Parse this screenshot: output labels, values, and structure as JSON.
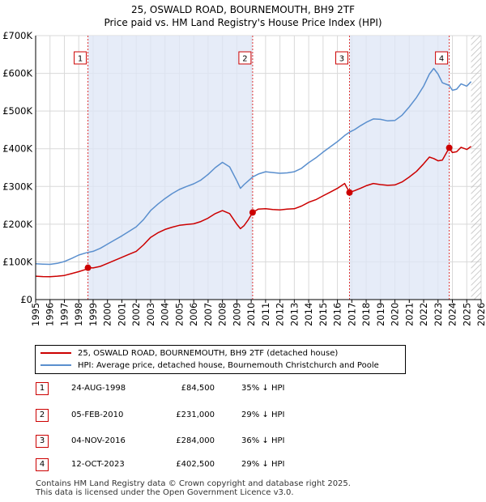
{
  "title_line1": "25, OSWALD ROAD, BOURNEMOUTH, BH9 2TF",
  "title_line2": "Price paid vs. HM Land Registry's House Price Index (HPI)",
  "chart_data": {
    "type": "line",
    "title": "25, OSWALD ROAD, BOURNEMOUTH, BH9 2TF — Price paid vs. HM Land Registry's House Price Index (HPI)",
    "xlim": [
      1995,
      2026
    ],
    "ylim": [
      0,
      700000
    ],
    "x_ticks": [
      1995,
      1996,
      1997,
      1998,
      1999,
      2000,
      2001,
      2002,
      2003,
      2004,
      2005,
      2006,
      2007,
      2008,
      2009,
      2010,
      2011,
      2012,
      2013,
      2014,
      2015,
      2016,
      2017,
      2018,
      2019,
      2020,
      2021,
      2022,
      2023,
      2024,
      2025,
      2026
    ],
    "y_ticks": [
      {
        "value": 0,
        "label": "£0"
      },
      {
        "value": 100000,
        "label": "£100K"
      },
      {
        "value": 200000,
        "label": "£200K"
      },
      {
        "value": 300000,
        "label": "£300K"
      },
      {
        "value": 400000,
        "label": "£400K"
      },
      {
        "value": 500000,
        "label": "£500K"
      },
      {
        "value": 600000,
        "label": "£600K"
      },
      {
        "value": 700000,
        "label": "£700K"
      }
    ],
    "grid": true,
    "series": [
      {
        "name": "25, OSWALD ROAD, BOURNEMOUTH, BH9 2TF (detached house)",
        "color": "#cc0000",
        "points": [
          [
            1995.0,
            62000
          ],
          [
            1995.5,
            61000
          ],
          [
            1996.0,
            60500
          ],
          [
            1996.5,
            62000
          ],
          [
            1997.0,
            64000
          ],
          [
            1997.5,
            69000
          ],
          [
            1998.0,
            74000
          ],
          [
            1998.5,
            80000
          ],
          [
            1998.64,
            84500
          ],
          [
            1999.0,
            84000
          ],
          [
            1999.5,
            88000
          ],
          [
            2000.0,
            96000
          ],
          [
            2000.5,
            104000
          ],
          [
            2001.0,
            112000
          ],
          [
            2001.5,
            120000
          ],
          [
            2002.0,
            128000
          ],
          [
            2002.5,
            145000
          ],
          [
            2003.0,
            165000
          ],
          [
            2003.5,
            177000
          ],
          [
            2004.0,
            186000
          ],
          [
            2004.5,
            192000
          ],
          [
            2005.0,
            197000
          ],
          [
            2005.5,
            199000
          ],
          [
            2006.0,
            201000
          ],
          [
            2006.5,
            207000
          ],
          [
            2007.0,
            216000
          ],
          [
            2007.5,
            228000
          ],
          [
            2008.0,
            236000
          ],
          [
            2008.5,
            228000
          ],
          [
            2009.0,
            200000
          ],
          [
            2009.25,
            188000
          ],
          [
            2009.5,
            196000
          ],
          [
            2009.8,
            212000
          ],
          [
            2010.1,
            231000
          ],
          [
            2010.5,
            240000
          ],
          [
            2011.0,
            241000
          ],
          [
            2011.5,
            239000
          ],
          [
            2012.0,
            238000
          ],
          [
            2012.5,
            240000
          ],
          [
            2013.0,
            241000
          ],
          [
            2013.5,
            248000
          ],
          [
            2014.0,
            258000
          ],
          [
            2014.5,
            265000
          ],
          [
            2015.0,
            275000
          ],
          [
            2015.5,
            285000
          ],
          [
            2016.0,
            295000
          ],
          [
            2016.5,
            308000
          ],
          [
            2016.84,
            284000
          ],
          [
            2017.2,
            289000
          ],
          [
            2017.6,
            295000
          ],
          [
            2018.0,
            302000
          ],
          [
            2018.5,
            308000
          ],
          [
            2019.0,
            305000
          ],
          [
            2019.5,
            303000
          ],
          [
            2020.0,
            304000
          ],
          [
            2020.5,
            312000
          ],
          [
            2021.0,
            325000
          ],
          [
            2021.5,
            340000
          ],
          [
            2022.0,
            360000
          ],
          [
            2022.4,
            378000
          ],
          [
            2022.7,
            374000
          ],
          [
            2023.0,
            368000
          ],
          [
            2023.3,
            370000
          ],
          [
            2023.78,
            402500
          ],
          [
            2024.0,
            390000
          ],
          [
            2024.3,
            392000
          ],
          [
            2024.6,
            404000
          ],
          [
            2025.0,
            398000
          ],
          [
            2025.3,
            406000
          ]
        ]
      },
      {
        "name": "HPI: Average price, detached house, Bournemouth Christchurch and Poole",
        "color": "#5a8fce",
        "points": [
          [
            1995.0,
            95000
          ],
          [
            1995.5,
            94000
          ],
          [
            1996.0,
            93500
          ],
          [
            1996.5,
            96000
          ],
          [
            1997.0,
            101000
          ],
          [
            1997.5,
            109000
          ],
          [
            1998.0,
            118000
          ],
          [
            1998.5,
            124000
          ],
          [
            1999.0,
            128000
          ],
          [
            1999.5,
            136000
          ],
          [
            2000.0,
            147000
          ],
          [
            2000.5,
            158000
          ],
          [
            2001.0,
            169000
          ],
          [
            2001.5,
            181000
          ],
          [
            2002.0,
            193000
          ],
          [
            2002.5,
            212000
          ],
          [
            2003.0,
            236000
          ],
          [
            2003.5,
            253000
          ],
          [
            2004.0,
            268000
          ],
          [
            2004.5,
            281000
          ],
          [
            2005.0,
            292000
          ],
          [
            2005.5,
            300000
          ],
          [
            2006.0,
            307000
          ],
          [
            2006.5,
            317000
          ],
          [
            2007.0,
            332000
          ],
          [
            2007.5,
            350000
          ],
          [
            2008.0,
            364000
          ],
          [
            2008.5,
            352000
          ],
          [
            2009.0,
            315000
          ],
          [
            2009.25,
            295000
          ],
          [
            2009.5,
            305000
          ],
          [
            2009.8,
            315000
          ],
          [
            2010.1,
            325000
          ],
          [
            2010.5,
            333000
          ],
          [
            2011.0,
            339000
          ],
          [
            2011.5,
            337000
          ],
          [
            2012.0,
            335000
          ],
          [
            2012.5,
            336000
          ],
          [
            2013.0,
            339000
          ],
          [
            2013.5,
            348000
          ],
          [
            2014.0,
            363000
          ],
          [
            2014.5,
            376000
          ],
          [
            2015.0,
            391000
          ],
          [
            2015.5,
            405000
          ],
          [
            2016.0,
            419000
          ],
          [
            2016.5,
            435000
          ],
          [
            2016.84,
            444000
          ],
          [
            2017.2,
            451000
          ],
          [
            2017.6,
            461000
          ],
          [
            2018.0,
            470000
          ],
          [
            2018.5,
            479000
          ],
          [
            2019.0,
            478000
          ],
          [
            2019.5,
            474000
          ],
          [
            2020.0,
            475000
          ],
          [
            2020.5,
            489000
          ],
          [
            2021.0,
            511000
          ],
          [
            2021.5,
            536000
          ],
          [
            2022.0,
            566000
          ],
          [
            2022.4,
            598000
          ],
          [
            2022.7,
            613000
          ],
          [
            2023.0,
            598000
          ],
          [
            2023.3,
            575000
          ],
          [
            2023.78,
            568000
          ],
          [
            2024.0,
            555000
          ],
          [
            2024.3,
            558000
          ],
          [
            2024.6,
            572000
          ],
          [
            2025.0,
            566000
          ],
          [
            2025.3,
            578000
          ]
        ]
      }
    ],
    "sales": [
      {
        "id": "1",
        "x": 1998.64,
        "value": 84500,
        "date": "24-AUG-1998",
        "price": "£84,500",
        "hpi": "35% ↓ HPI"
      },
      {
        "id": "2",
        "x": 2010.1,
        "value": 231000,
        "date": "05-FEB-2010",
        "price": "£231,000",
        "hpi": "29% ↓ HPI"
      },
      {
        "id": "3",
        "x": 2016.84,
        "value": 284000,
        "date": "04-NOV-2016",
        "price": "£284,000",
        "hpi": "36% ↓ HPI"
      },
      {
        "id": "4",
        "x": 2023.78,
        "value": 402500,
        "date": "12-OCT-2023",
        "price": "£402,500",
        "hpi": "29% ↓ HPI"
      }
    ],
    "shaded_spans": [
      [
        1998.64,
        2010.1
      ],
      [
        2016.84,
        2023.78
      ]
    ],
    "future_hatch_from": 2025.3
  },
  "legend": {
    "sales_label": "25, OSWALD ROAD, BOURNEMOUTH, BH9 2TF (detached house)",
    "hpi_label": "HPI: Average price, detached house, Bournemouth Christchurch and Poole",
    "sales_color": "#cc0000",
    "hpi_color": "#5a8fce"
  },
  "footer": {
    "line1": "Contains HM Land Registry data © Crown copyright and database right 2025.",
    "line2": "This data is licensed under the Open Government Licence v3.0."
  }
}
